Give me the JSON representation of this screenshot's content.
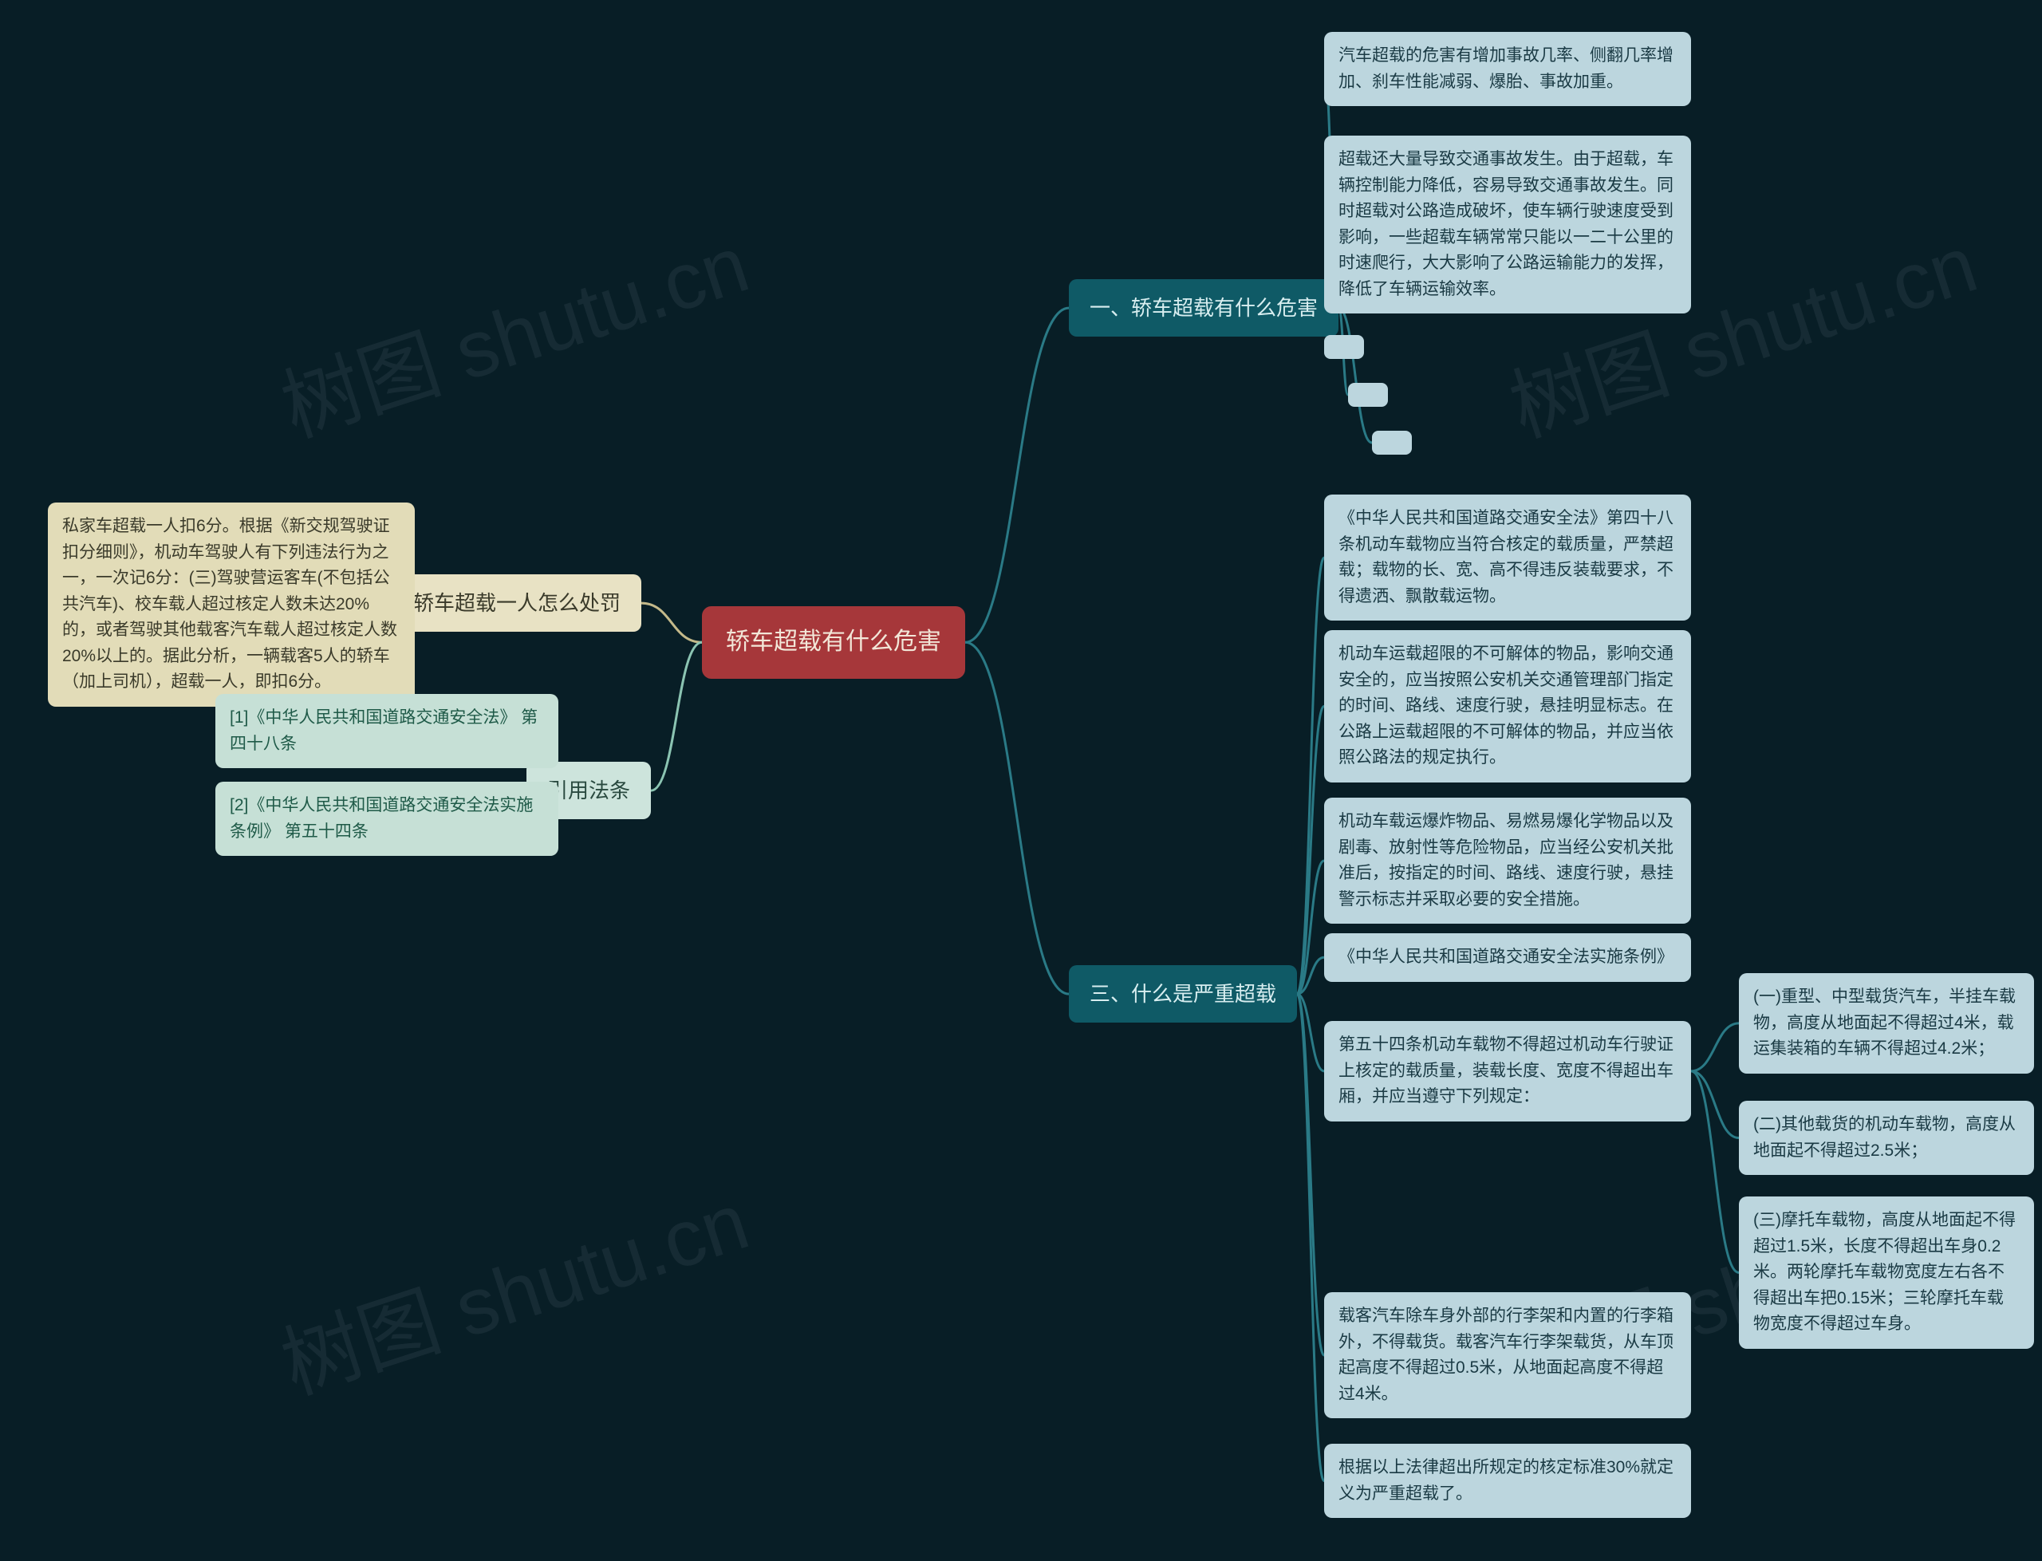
{
  "colors": {
    "background": "#081e26",
    "root_bg": "#a6373a",
    "root_fg": "#f2e6d8",
    "teal_bg": "#0f5a66",
    "teal_fg": "#d8eef0",
    "cream_bg": "#e8e2c4",
    "cream_fg": "#3a3a2a",
    "mint_bg": "#cde4dc",
    "mint_fg": "#2a4a40",
    "leaf_blue_bg": "#bcd6de",
    "leaf_blue_fg": "#1a3a44",
    "leaf_yellow_bg": "#e2dcb8",
    "leaf_mint_bg": "#c6e0d6",
    "connector": "#2a7a86",
    "watermark": "rgba(150,170,175,0.10)"
  },
  "fonts": {
    "root_size": 30,
    "branch_size": 26,
    "leaf_size": 21,
    "watermark_size": 100
  },
  "watermark_text": "树图 shutu.cn",
  "root": {
    "label": "轿车超载有什么危害"
  },
  "branches": {
    "b1": {
      "label": "一、轿车超载有什么危害"
    },
    "b2": {
      "label": "二、轿车超载一人怎么处罚"
    },
    "b3": {
      "label": "三、什么是严重超载"
    },
    "b4": {
      "label": "引用法条"
    }
  },
  "leaves": {
    "b1_1": "汽车超载的危害有增加事故几率、侧翻几率增加、刹车性能减弱、爆胎、事故加重。",
    "b1_2": "超载还大量导致交通事故发生。由于超载，车辆控制能力降低，容易导致交通事故发生。同时超载对公路造成破坏，使车辆行驶速度受到影响，一些超载车辆常常只能以一二十公里的时速爬行，大大影响了公路运输能力的发挥，降低了车辆运输效率。",
    "b2_1": "私家车超载一人扣6分。根据《新交规驾驶证扣分细则》，机动车驾驶人有下列违法行为之一，一次记6分：(三)驾驶营运客车(不包括公共汽车)、校车载人超过核定人数未达20%的，或者驾驶其他载客汽车载人超过核定人数20%以上的。据此分析，一辆载客5人的轿车（加上司机），超载一人，即扣6分。",
    "b3_1": "《中华人民共和国道路交通安全法》第四十八条机动车载物应当符合核定的载质量，严禁超载；载物的长、宽、高不得违反装载要求，不得遗洒、飘散载运物。",
    "b3_2": "机动车运载超限的不可解体的物品，影响交通安全的，应当按照公安机关交通管理部门指定的时间、路线、速度行驶，悬挂明显标志。在公路上运载超限的不可解体的物品，并应当依照公路法的规定执行。",
    "b3_3": "机动车载运爆炸物品、易燃易爆化学物品以及剧毒、放射性等危险物品，应当经公安机关批准后，按指定的时间、路线、速度行驶，悬挂警示标志并采取必要的安全措施。",
    "b3_4": "《中华人民共和国道路交通安全法实施条例》",
    "b3_5": "第五十四条机动车载物不得超过机动车行驶证上核定的载质量，装载长度、宽度不得超出车厢，并应当遵守下列规定：",
    "b3_5_1": "(一)重型、中型载货汽车，半挂车载物，高度从地面起不得超过4米，载运集装箱的车辆不得超过4.2米；",
    "b3_5_2": "(二)其他载货的机动车载物，高度从地面起不得超过2.5米；",
    "b3_5_3": "(三)摩托车载物，高度从地面起不得超过1.5米，长度不得超出车身0.2米。两轮摩托车载物宽度左右各不得超出车把0.15米；三轮摩托车载物宽度不得超过车身。",
    "b3_6": "载客汽车除车身外部的行李架和内置的行李箱外，不得载货。载客汽车行李架载货，从车顶起高度不得超过0.5米，从地面起高度不得超过4米。",
    "b3_7": "根据以上法律超出所规定的核定标准30%就定义为严重超载了。",
    "b4_1": "[1]《中华人民共和国道路交通安全法》 第四十八条",
    "b4_2": "[2]《中华人民共和国道路交通安全法实施条例》 第五十四条"
  },
  "edges": [
    {
      "from": "root-r",
      "to": "b1-l",
      "color": "#2a7a86"
    },
    {
      "from": "root-r",
      "to": "b3-l",
      "color": "#2a7a86"
    },
    {
      "from": "root-l",
      "to": "b2-r",
      "color": "#c4b98a"
    },
    {
      "from": "root-l",
      "to": "b4-r",
      "color": "#8bc4b2"
    },
    {
      "from": "b1-r",
      "to": "b1_1-l",
      "color": "#2a7a86"
    },
    {
      "from": "b1-r",
      "to": "b1_2-l",
      "color": "#2a7a86"
    },
    {
      "from": "b1-r",
      "to": "p1-l",
      "color": "#2a7a86"
    },
    {
      "from": "b1-r",
      "to": "p2-l",
      "color": "#2a7a86"
    },
    {
      "from": "b1-r",
      "to": "p3-l",
      "color": "#2a7a86"
    },
    {
      "from": "b2-l",
      "to": "b2_1-r",
      "color": "#c4b98a"
    },
    {
      "from": "b4-l",
      "to": "b4_1-r",
      "color": "#8bc4b2"
    },
    {
      "from": "b4-l",
      "to": "b4_2-r",
      "color": "#8bc4b2"
    },
    {
      "from": "b3-r",
      "to": "b3_1-l",
      "color": "#2a7a86"
    },
    {
      "from": "b3-r",
      "to": "b3_2-l",
      "color": "#2a7a86"
    },
    {
      "from": "b3-r",
      "to": "b3_3-l",
      "color": "#2a7a86"
    },
    {
      "from": "b3-r",
      "to": "b3_4-l",
      "color": "#2a7a86"
    },
    {
      "from": "b3-r",
      "to": "b3_5-l",
      "color": "#2a7a86"
    },
    {
      "from": "b3-r",
      "to": "b3_6-l",
      "color": "#2a7a86"
    },
    {
      "from": "b3-r",
      "to": "b3_7-l",
      "color": "#2a7a86"
    },
    {
      "from": "b3_5-r",
      "to": "b3_5_1-l",
      "color": "#2a7a86"
    },
    {
      "from": "b3_5-r",
      "to": "b3_5_2-l",
      "color": "#2a7a86"
    },
    {
      "from": "b3_5-r",
      "to": "b3_5_3-l",
      "color": "#2a7a86"
    }
  ]
}
